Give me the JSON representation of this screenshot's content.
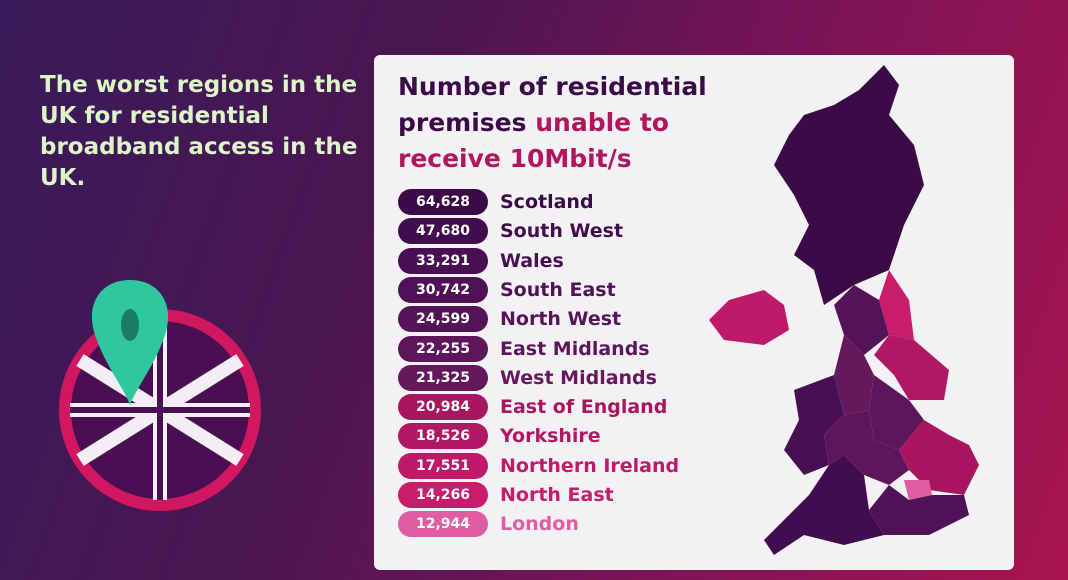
{
  "heading": "The worst regions in the UK for residential broadband access in the UK.",
  "card": {
    "title_plain": "Number of residential premises",
    "title_highlight": "unable to receive 10Mbit/s",
    "rows": [
      {
        "value": "64,628",
        "region": "Scotland",
        "color": "#3b0b47"
      },
      {
        "value": "47,680",
        "region": "South West",
        "color": "#420d4e"
      },
      {
        "value": "33,291",
        "region": "Wales",
        "color": "#481052"
      },
      {
        "value": "30,742",
        "region": "South East",
        "color": "#4f1256"
      },
      {
        "value": "24,599",
        "region": "North West",
        "color": "#561458"
      },
      {
        "value": "22,255",
        "region": "East Midlands",
        "color": "#5e165a"
      },
      {
        "value": "21,325",
        "region": "West Midlands",
        "color": "#66185d"
      },
      {
        "value": "20,984",
        "region": "East of England",
        "color": "#a8165f"
      },
      {
        "value": "18,526",
        "region": "Yorkshire",
        "color": "#b11864"
      },
      {
        "value": "17,551",
        "region": "Northern Ireland",
        "color": "#bf1a69"
      },
      {
        "value": "14,266",
        "region": "North East",
        "color": "#c81c6c"
      },
      {
        "value": "12,944",
        "region": "London",
        "color": "#e05ca3"
      }
    ]
  }
}
